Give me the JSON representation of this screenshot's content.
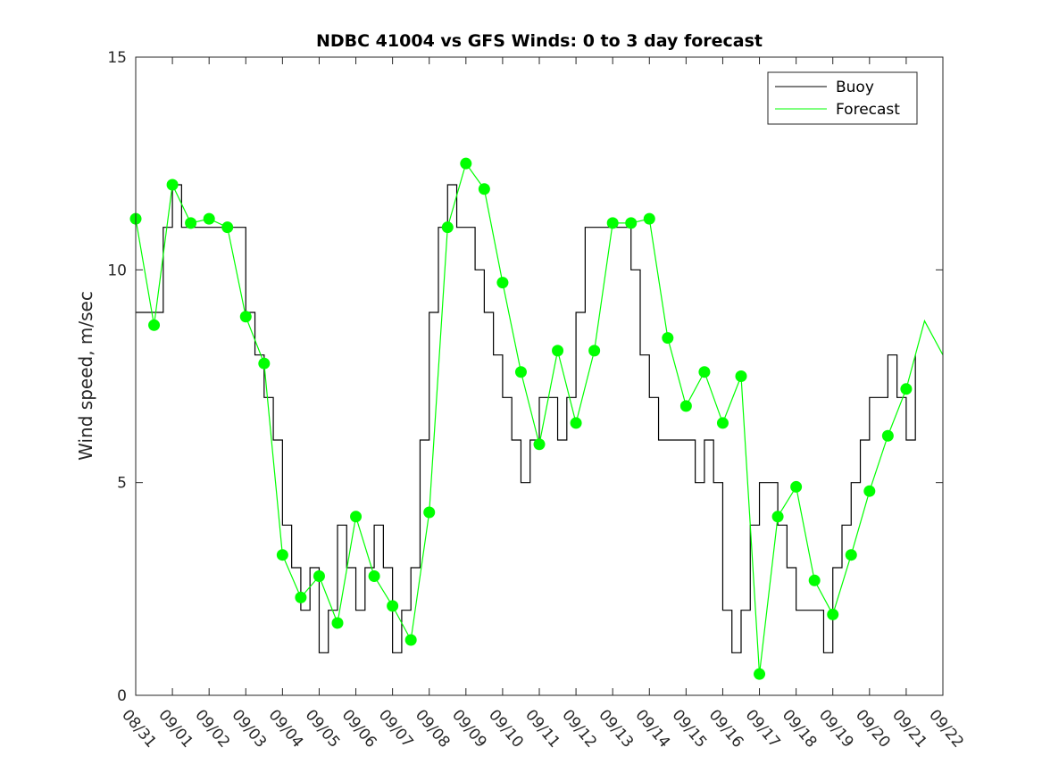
{
  "chart_data": {
    "type": "line",
    "title": "NDBC 41004 vs GFS Winds: 0 to 3 day forecast",
    "xlabel": "",
    "ylabel": "Wind speed, m/sec",
    "ylim": [
      0,
      15
    ],
    "xlim": [
      0,
      22
    ],
    "yticks": [
      0,
      5,
      10,
      15
    ],
    "x_tick_labels": [
      "08/31",
      "09/01",
      "09/02",
      "09/03",
      "09/04",
      "09/05",
      "09/06",
      "09/07",
      "09/08",
      "09/09",
      "09/10",
      "09/11",
      "09/12",
      "09/13",
      "09/14",
      "09/15",
      "09/16",
      "09/17",
      "09/18",
      "09/19",
      "09/20",
      "09/21",
      "09/22"
    ],
    "legend": {
      "placement": "top-right",
      "entries": [
        "Buoy",
        "Forecast"
      ]
    },
    "colors": {
      "buoy": "#000000",
      "forecast": "#00ff00",
      "axes": "#262626"
    },
    "series": [
      {
        "name": "Buoy",
        "x": [
          0,
          0.25,
          0.5,
          0.75,
          1,
          1.25,
          1.5,
          1.75,
          2,
          2.25,
          2.5,
          2.75,
          3,
          3.25,
          3.5,
          3.75,
          4,
          4.25,
          4.5,
          4.75,
          5,
          5.25,
          5.5,
          5.75,
          6,
          6.25,
          6.5,
          6.75,
          7,
          7.25,
          7.5,
          7.75,
          8,
          8.25,
          8.5,
          8.75,
          9,
          9.25,
          9.5,
          9.75,
          10,
          10.25,
          10.5,
          10.75,
          11,
          11.25,
          11.5,
          11.75,
          12,
          12.25,
          12.5,
          12.75,
          13,
          13.25,
          13.5,
          13.75,
          14,
          14.25,
          14.5,
          14.75,
          15,
          15.25,
          15.5,
          15.75,
          16,
          16.25,
          16.5,
          16.75,
          17,
          17.25,
          17.5,
          17.75,
          18,
          18.25,
          18.5,
          18.75,
          19,
          19.25,
          19.5,
          19.75,
          20,
          20.25,
          20.5,
          20.75,
          21,
          21.25
        ],
        "values": [
          9,
          9,
          9,
          11,
          12,
          11,
          11,
          11,
          11,
          11,
          11,
          11,
          9,
          8,
          7,
          6,
          4,
          3,
          2,
          3,
          1,
          2,
          4,
          3,
          2,
          3,
          4,
          3,
          1,
          2,
          3,
          6,
          9,
          11,
          12,
          11,
          11,
          10,
          9,
          8,
          7,
          6,
          5,
          6,
          7,
          7,
          6,
          7,
          9,
          11,
          11,
          11,
          11,
          11,
          10,
          8,
          7,
          6,
          6,
          6,
          6,
          5,
          6,
          5,
          2,
          1,
          2,
          4,
          5,
          5,
          4,
          3,
          2,
          2,
          2,
          1,
          3,
          4,
          5,
          6,
          7,
          7,
          8,
          7,
          6,
          8
        ]
      },
      {
        "name": "Forecast",
        "x": [
          0,
          0.5,
          1,
          1.5,
          2,
          2.5,
          3,
          3.5,
          4,
          4.5,
          5,
          5.5,
          6,
          6.5,
          7,
          7.5,
          8,
          8.5,
          9,
          9.5,
          10,
          10.5,
          11,
          11.5,
          12,
          12.5,
          13,
          13.5,
          14,
          14.5,
          15,
          15.5,
          16,
          16.5,
          17,
          17.5,
          18,
          18.5,
          19,
          19.5,
          20,
          20.5,
          21,
          21.5,
          22
        ],
        "values": [
          11.2,
          8.7,
          12.0,
          11.1,
          11.2,
          11.0,
          8.9,
          7.8,
          3.3,
          2.3,
          2.8,
          1.7,
          4.2,
          2.8,
          2.1,
          1.3,
          4.3,
          11.0,
          12.5,
          11.9,
          9.7,
          7.6,
          5.9,
          8.1,
          6.4,
          8.1,
          11.1,
          11.1,
          11.2,
          8.4,
          6.8,
          7.6,
          6.4,
          7.5,
          0.5,
          4.2,
          4.9,
          2.7,
          1.9,
          3.3,
          4.8,
          6.1,
          7.2,
          8.8,
          8.0
        ]
      }
    ],
    "forecast_markers": {
      "x": [
        0,
        0.5,
        1,
        1.5,
        2,
        2.5,
        3,
        3.5,
        4,
        4.5,
        5,
        5.5,
        6,
        6.5,
        7,
        7.5,
        8,
        8.5,
        9,
        9.5,
        10,
        10.5,
        11,
        11.5,
        12,
        12.5,
        13,
        13.5,
        14,
        14.5,
        15,
        15.5,
        16,
        16.5,
        17,
        17.5,
        18,
        18.5,
        19,
        19.5,
        20,
        20.5,
        21
      ],
      "values": [
        11.2,
        8.7,
        12.0,
        11.1,
        11.2,
        11.0,
        8.9,
        7.8,
        3.3,
        2.3,
        2.8,
        1.7,
        4.2,
        2.8,
        2.1,
        1.3,
        4.3,
        11.0,
        12.5,
        11.9,
        9.7,
        7.6,
        5.9,
        8.1,
        6.4,
        8.1,
        11.1,
        11.1,
        11.2,
        8.4,
        6.8,
        7.6,
        6.4,
        7.5,
        0.5,
        4.2,
        4.9,
        2.7,
        1.9,
        3.3,
        4.8,
        6.1,
        7.2
      ]
    }
  }
}
